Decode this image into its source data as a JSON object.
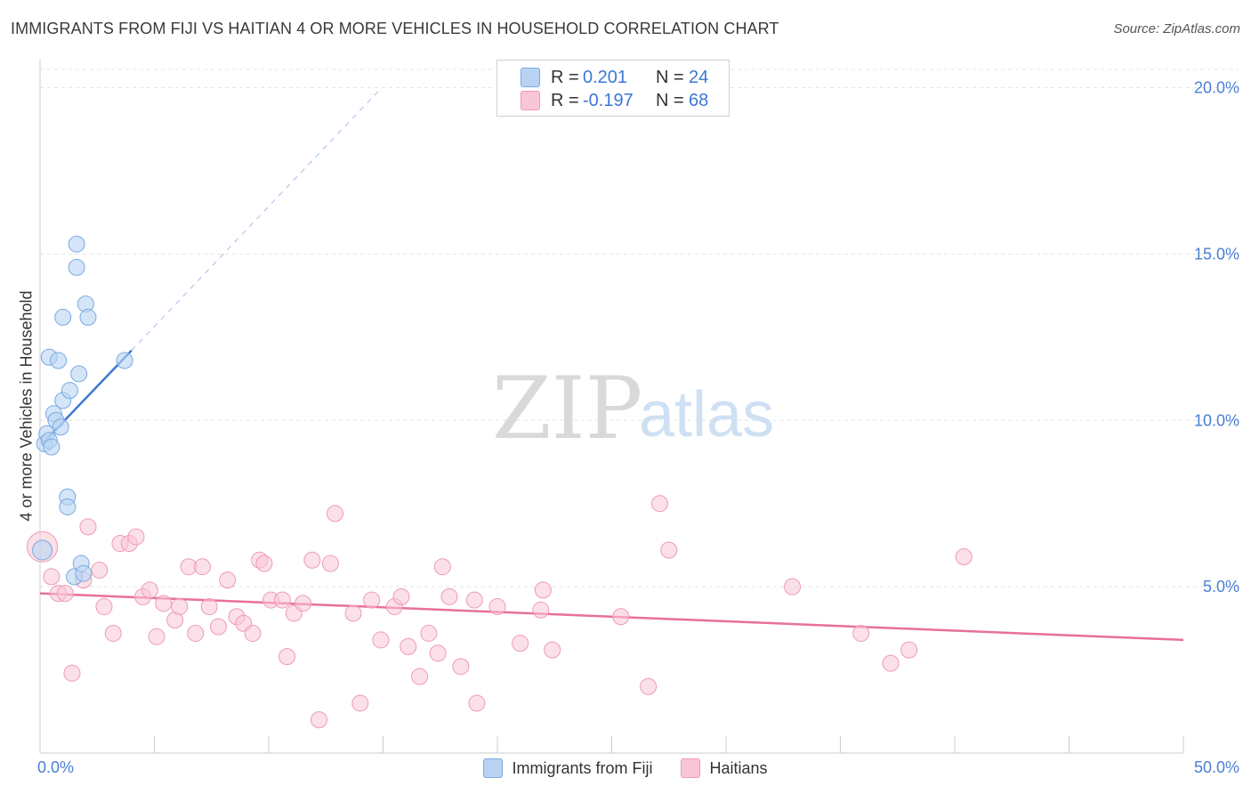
{
  "title": "IMMIGRANTS FROM FIJI VS HAITIAN 4 OR MORE VEHICLES IN HOUSEHOLD CORRELATION CHART",
  "source": "Source: ZipAtlas.com",
  "watermark": {
    "zip": "ZIP",
    "atlas": "atlas"
  },
  "legend": {
    "rows": [
      {
        "r_label": "R =",
        "r_value": "0.201",
        "n_label": "N =",
        "n_value": "24"
      },
      {
        "r_label": "R =",
        "r_value": "-0.197",
        "n_label": "N =",
        "n_value": "68"
      }
    ]
  },
  "bottom_legend": {
    "fiji": "Immigrants from Fiji",
    "haitians": "Haitians"
  },
  "colors": {
    "fiji_fill": "#b8d3f2",
    "fiji_stroke": "#7aa9e0",
    "fiji_line": "#3a78d4",
    "haiti_fill": "#f9c6d6",
    "haiti_stroke": "#ee9ab4",
    "haiti_line": "#e8709a",
    "tick": "#4a7fd4"
  },
  "chart_data": {
    "type": "scatter",
    "title": "IMMIGRANTS FROM FIJI VS HAITIAN 4 OR MORE VEHICLES IN HOUSEHOLD CORRELATION CHART",
    "xlabel": "",
    "ylabel": "4 or more Vehicles in Household",
    "xlim": [
      0,
      50
    ],
    "ylim": [
      0,
      20
    ],
    "x_tick_labels": [
      "0.0%",
      "50.0%"
    ],
    "y_ticks": [
      5,
      10,
      15,
      20
    ],
    "y_tick_labels": [
      "5.0%",
      "10.0%",
      "15.0%",
      "20.0%"
    ],
    "grid": true,
    "series": [
      {
        "name": "Immigrants from Fiji",
        "r": 0.201,
        "n": 24,
        "trend": {
          "x0": 0.1,
          "y0": 9.3,
          "x1": 4.0,
          "y1": 12.1,
          "dash_x1": 14.8,
          "dash_y1": 19.9
        },
        "points": [
          [
            0.1,
            6.1
          ],
          [
            0.2,
            9.3
          ],
          [
            0.3,
            9.6
          ],
          [
            0.4,
            9.4
          ],
          [
            0.4,
            11.9
          ],
          [
            0.5,
            9.2
          ],
          [
            0.6,
            10.2
          ],
          [
            0.7,
            10.0
          ],
          [
            0.8,
            11.8
          ],
          [
            0.9,
            9.8
          ],
          [
            1.0,
            10.6
          ],
          [
            1.0,
            13.1
          ],
          [
            1.2,
            7.7
          ],
          [
            1.2,
            7.4
          ],
          [
            1.3,
            10.9
          ],
          [
            1.5,
            5.3
          ],
          [
            1.6,
            14.6
          ],
          [
            1.6,
            15.3
          ],
          [
            1.7,
            11.4
          ],
          [
            1.8,
            5.7
          ],
          [
            1.9,
            5.4
          ],
          [
            2.0,
            13.5
          ],
          [
            2.1,
            13.1
          ],
          [
            3.7,
            11.8
          ]
        ]
      },
      {
        "name": "Haitians",
        "r": -0.197,
        "n": 68,
        "trend": {
          "x0": 0,
          "y0": 4.8,
          "x1": 50,
          "y1": 3.4
        },
        "points": [
          [
            0.1,
            6.2
          ],
          [
            0.5,
            5.3
          ],
          [
            0.8,
            4.8
          ],
          [
            1.1,
            4.8
          ],
          [
            1.4,
            2.4
          ],
          [
            1.9,
            5.2
          ],
          [
            2.1,
            6.8
          ],
          [
            2.6,
            5.5
          ],
          [
            2.8,
            4.4
          ],
          [
            3.2,
            3.6
          ],
          [
            3.5,
            6.3
          ],
          [
            3.9,
            6.3
          ],
          [
            4.2,
            6.5
          ],
          [
            4.5,
            4.7
          ],
          [
            4.8,
            4.9
          ],
          [
            5.1,
            3.5
          ],
          [
            5.4,
            4.5
          ],
          [
            5.9,
            4.0
          ],
          [
            6.1,
            4.4
          ],
          [
            6.5,
            5.6
          ],
          [
            6.8,
            3.6
          ],
          [
            7.1,
            5.6
          ],
          [
            7.4,
            4.4
          ],
          [
            7.8,
            3.8
          ],
          [
            8.2,
            5.2
          ],
          [
            8.6,
            4.1
          ],
          [
            8.9,
            3.9
          ],
          [
            9.3,
            3.6
          ],
          [
            9.6,
            5.8
          ],
          [
            9.8,
            5.7
          ],
          [
            10.1,
            4.6
          ],
          [
            10.6,
            4.6
          ],
          [
            10.8,
            2.9
          ],
          [
            11.1,
            4.2
          ],
          [
            11.5,
            4.5
          ],
          [
            11.9,
            5.8
          ],
          [
            12.2,
            1.0
          ],
          [
            12.7,
            5.7
          ],
          [
            12.9,
            7.2
          ],
          [
            13.7,
            4.2
          ],
          [
            14.0,
            1.5
          ],
          [
            14.5,
            4.6
          ],
          [
            14.9,
            3.4
          ],
          [
            15.5,
            4.4
          ],
          [
            15.8,
            4.7
          ],
          [
            16.1,
            3.2
          ],
          [
            16.6,
            2.3
          ],
          [
            17.0,
            3.6
          ],
          [
            17.4,
            3.0
          ],
          [
            17.6,
            5.6
          ],
          [
            17.9,
            4.7
          ],
          [
            18.4,
            2.6
          ],
          [
            19.0,
            4.6
          ],
          [
            19.1,
            1.5
          ],
          [
            20.0,
            4.4
          ],
          [
            21.0,
            3.3
          ],
          [
            21.9,
            4.3
          ],
          [
            22.0,
            4.9
          ],
          [
            22.4,
            3.1
          ],
          [
            25.4,
            4.1
          ],
          [
            26.6,
            2.0
          ],
          [
            27.1,
            7.5
          ],
          [
            27.5,
            6.1
          ],
          [
            32.9,
            5.0
          ],
          [
            35.9,
            3.6
          ],
          [
            37.2,
            2.7
          ],
          [
            38.0,
            3.1
          ],
          [
            40.4,
            5.9
          ]
        ]
      }
    ]
  }
}
